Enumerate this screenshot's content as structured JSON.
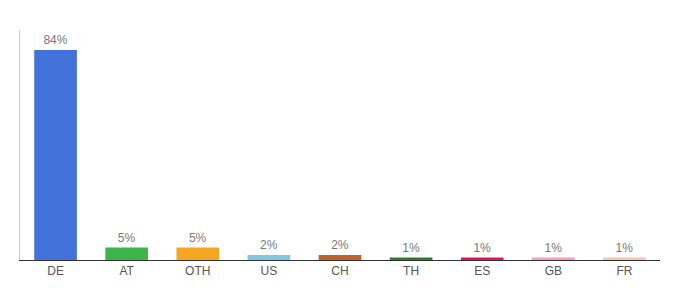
{
  "chart_data": {
    "type": "bar",
    "categories": [
      "DE",
      "AT",
      "OTH",
      "US",
      "CH",
      "TH",
      "ES",
      "GB",
      "FR"
    ],
    "values": [
      84,
      5,
      5,
      2,
      2,
      1,
      1,
      1,
      1
    ],
    "value_labels": [
      "84%",
      "5%",
      "5%",
      "2%",
      "2%",
      "1%",
      "1%",
      "1%",
      "1%"
    ],
    "colors": [
      "#4472db",
      "#3cb54a",
      "#f5a623",
      "#7ec8e3",
      "#c0622a",
      "#2d7a2d",
      "#e0145a",
      "#f5a0b5",
      "#f0c8b0"
    ],
    "ylim": [
      0,
      92
    ],
    "data_labels": true,
    "tick_labels": "x",
    "grid": false
  }
}
